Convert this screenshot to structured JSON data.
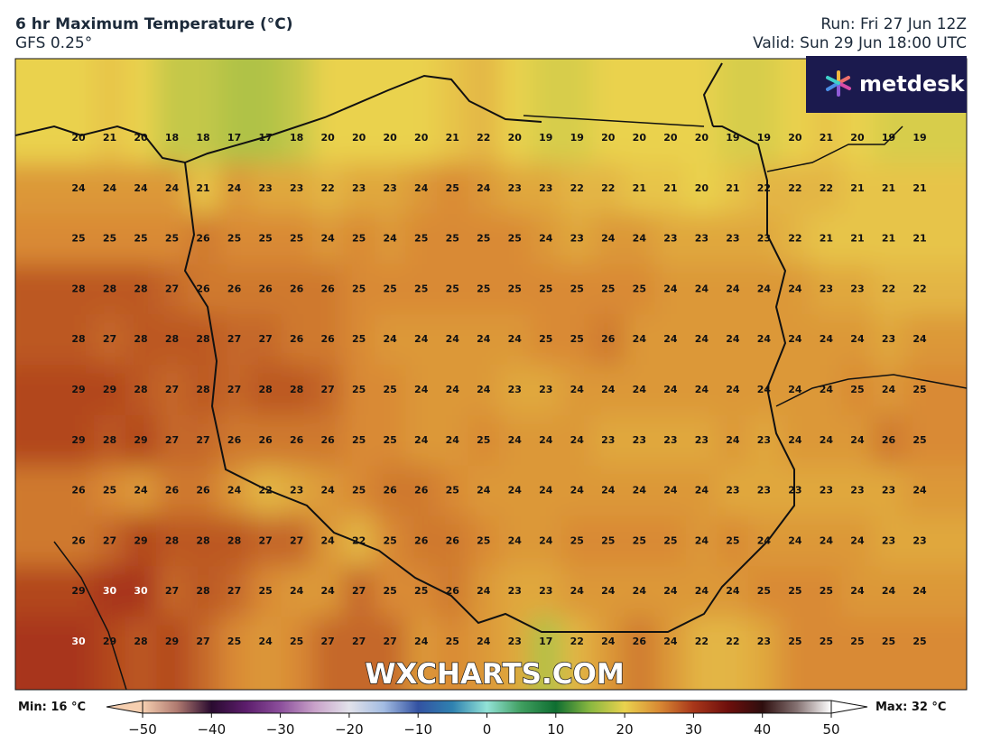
{
  "header": {
    "title": "6 hr Maximum Temperature (°C)",
    "model": "GFS 0.25°",
    "run": "Run: Fri 27 Jun 12Z",
    "valid": "Valid: Sun 29 Jun 18:00 UTC"
  },
  "logo": "metdesk",
  "watermark": "WXCHARTS.COM",
  "grid": {
    "rows": [
      [
        20,
        21,
        20,
        18,
        18,
        17,
        17,
        18,
        20,
        20,
        20,
        20,
        21,
        22,
        20,
        19,
        19,
        20,
        20,
        20,
        20,
        19,
        19,
        20,
        21,
        20,
        19,
        19
      ],
      [
        24,
        24,
        24,
        24,
        21,
        24,
        23,
        23,
        22,
        23,
        23,
        24,
        25,
        24,
        23,
        23,
        22,
        22,
        21,
        21,
        20,
        21,
        22,
        22,
        22,
        21,
        21,
        21
      ],
      [
        25,
        25,
        25,
        25,
        26,
        25,
        25,
        25,
        24,
        25,
        24,
        25,
        25,
        25,
        25,
        24,
        23,
        24,
        24,
        23,
        23,
        23,
        23,
        22,
        21,
        21,
        21,
        21
      ],
      [
        28,
        28,
        28,
        27,
        26,
        26,
        26,
        26,
        26,
        25,
        25,
        25,
        25,
        25,
        25,
        25,
        25,
        25,
        25,
        24,
        24,
        24,
        24,
        24,
        23,
        23,
        22,
        22
      ],
      [
        28,
        27,
        28,
        28,
        28,
        27,
        27,
        26,
        26,
        25,
        24,
        24,
        24,
        24,
        24,
        25,
        25,
        26,
        24,
        24,
        24,
        24,
        24,
        24,
        24,
        24,
        23,
        24
      ],
      [
        29,
        29,
        28,
        27,
        28,
        27,
        28,
        28,
        27,
        25,
        25,
        24,
        24,
        24,
        23,
        23,
        24,
        24,
        24,
        24,
        24,
        24,
        24,
        24,
        24,
        25,
        24,
        25
      ],
      [
        29,
        28,
        29,
        27,
        27,
        26,
        26,
        26,
        26,
        25,
        25,
        24,
        24,
        25,
        24,
        24,
        24,
        23,
        23,
        23,
        23,
        24,
        23,
        24,
        24,
        24,
        26,
        25
      ],
      [
        26,
        25,
        24,
        26,
        26,
        24,
        22,
        23,
        24,
        25,
        26,
        26,
        25,
        24,
        24,
        24,
        24,
        24,
        24,
        24,
        24,
        23,
        23,
        23,
        23,
        23,
        23,
        24
      ],
      [
        26,
        27,
        29,
        28,
        28,
        28,
        27,
        27,
        24,
        22,
        25,
        26,
        26,
        25,
        24,
        24,
        25,
        25,
        25,
        25,
        24,
        25,
        24,
        24,
        24,
        24,
        23,
        23
      ],
      [
        29,
        30,
        30,
        27,
        28,
        27,
        25,
        24,
        24,
        27,
        25,
        25,
        26,
        24,
        23,
        23,
        24,
        24,
        24,
        24,
        24,
        24,
        25,
        25,
        25,
        24,
        24,
        24
      ],
      [
        30,
        29,
        28,
        29,
        27,
        25,
        24,
        25,
        27,
        27,
        27,
        24,
        25,
        24,
        23,
        17,
        22,
        24,
        26,
        24,
        22,
        22,
        23,
        25,
        25,
        25,
        25,
        25
      ]
    ]
  },
  "colorbar": {
    "min_label": "Min: 16 °C",
    "max_label": "Max: 32 °C",
    "lim": [
      -50,
      50
    ],
    "ticks": [
      {
        "value": -50,
        "label": "−50"
      },
      {
        "value": -40,
        "label": "−40"
      },
      {
        "value": -30,
        "label": "−30"
      },
      {
        "value": -20,
        "label": "−20"
      },
      {
        "value": -10,
        "label": "−10"
      },
      0,
      10,
      20,
      30,
      40,
      50
    ],
    "colors": [
      "#f6cfb0",
      "#b07a70",
      "#2a0b30",
      "#5c1d6c",
      "#8c4f9c",
      "#c9a2c9",
      "#e2e2ea",
      "#a3bce2",
      "#3352a2",
      "#2f82b0",
      "#92e2d6",
      "#3f9e5f",
      "#0f6e31",
      "#8ab840",
      "#ead24e",
      "#d98a34",
      "#a8361a",
      "#6e0f0c",
      "#2e0e0e",
      "#857272",
      "#ffffff"
    ]
  }
}
